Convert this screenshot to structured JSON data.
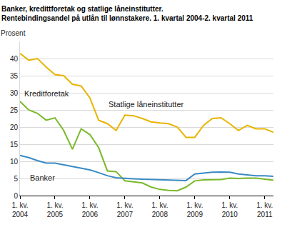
{
  "chart_data": {
    "type": "line",
    "title": "Banker, kredittforetak og statlige låneinstitutter. Rentebindingsandel på utlån til lønnstakere. 1. kvartal 2004-2. kvartal 2011",
    "y_label": "Prosent",
    "categories": [
      "1. kv. 2004",
      null,
      null,
      null,
      "1. kv. 2005",
      null,
      null,
      null,
      "1. kv. 2006",
      null,
      null,
      null,
      "1. kv. 2007",
      null,
      null,
      null,
      "1. kv. 2008",
      null,
      null,
      null,
      "1. kv. 2009",
      null,
      null,
      null,
      "1. kv. 2010",
      null,
      null,
      null,
      "1. kv. 2011",
      null
    ],
    "series": [
      {
        "name": "Statlige låneinstitutter",
        "color": "#e8b400",
        "values": [
          41.5,
          39.5,
          40,
          37.5,
          35.3,
          35,
          32.5,
          32,
          28.5,
          22,
          21,
          19,
          23.5,
          23.3,
          22.5,
          21.5,
          21.2,
          21,
          20,
          17,
          17,
          20.5,
          22.5,
          22.7,
          21,
          19,
          20.5,
          19.5,
          19.5,
          18.5
        ]
      },
      {
        "name": "Kreditforetak",
        "color": "#7ab929",
        "values": [
          27.5,
          25,
          24,
          22,
          22.7,
          19,
          13.5,
          19.5,
          17.8,
          14,
          7.2,
          7,
          4.3,
          4,
          3.7,
          2.5,
          1.8,
          1.5,
          1.4,
          2.5,
          4.3,
          4.6,
          4.7,
          4.7,
          5.1,
          5,
          5.1,
          5.1,
          4.8,
          4.5
        ]
      },
      {
        "name": "Banker",
        "color": "#3a8ac4",
        "values": [
          11.7,
          11.1,
          10.2,
          9.5,
          9.5,
          9,
          8.5,
          8,
          7.5,
          6.7,
          5.8,
          5.2,
          5,
          4.9,
          4.8,
          4.7,
          4.6,
          4.5,
          4.5,
          4.4,
          6.3,
          6.6,
          6.8,
          6.9,
          6.8,
          6.3,
          6,
          5.8,
          5.8,
          5.6
        ]
      }
    ],
    "ylim": [
      0,
      45
    ],
    "yticks": [
      0,
      5,
      10,
      15,
      20,
      25,
      30,
      35,
      40
    ],
    "grid": true
  }
}
